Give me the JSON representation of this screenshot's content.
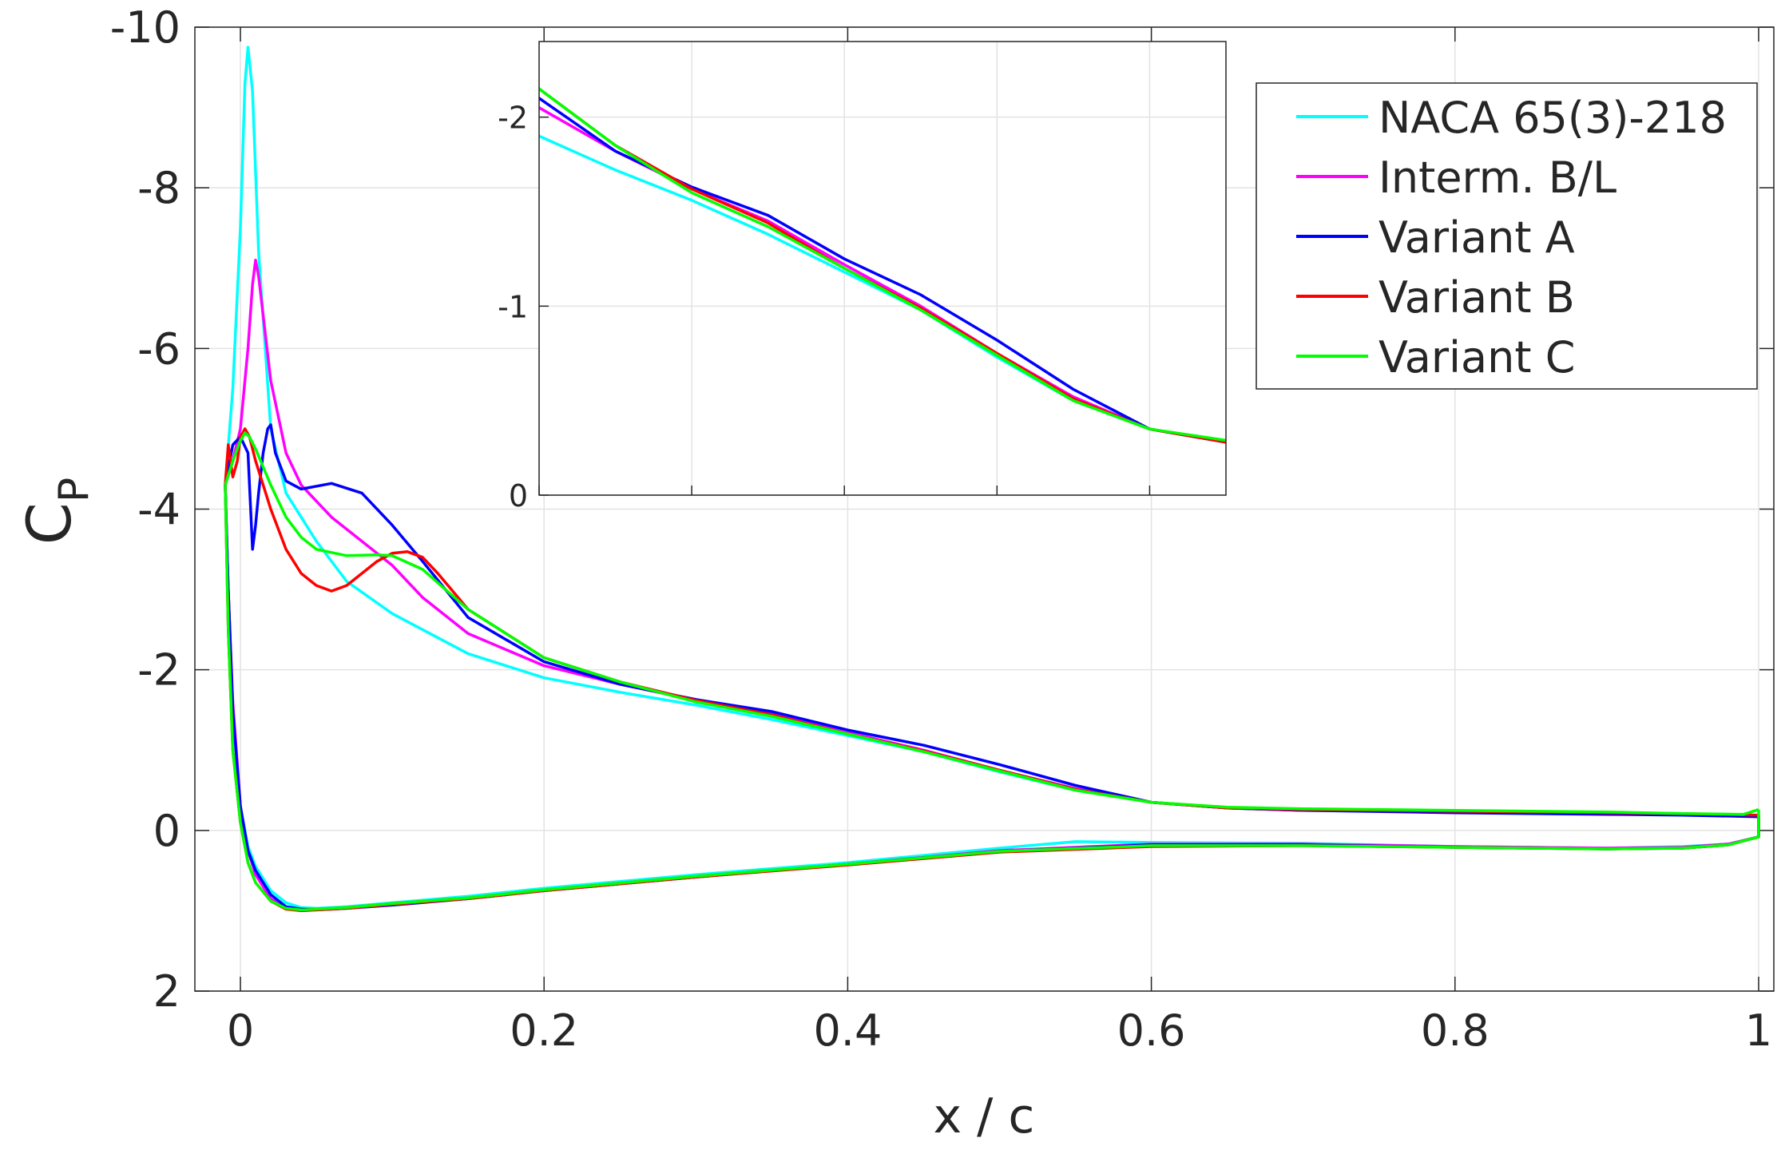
{
  "chart_data": {
    "type": "line",
    "xlabel": "x / c",
    "ylabel_main": "C",
    "ylabel_sub": "P",
    "xlim": [
      -0.03,
      1.01
    ],
    "ylim": [
      -10,
      2
    ],
    "y_reversed": true,
    "grid": true,
    "xticks": [
      0,
      0.2,
      0.4,
      0.6,
      0.8,
      1
    ],
    "xtick_labels": [
      "0",
      "0.2",
      "0.4",
      "0.6",
      "0.8",
      "1"
    ],
    "yticks": [
      -10,
      -8,
      -6,
      -4,
      -2,
      0,
      2
    ],
    "ytick_labels": [
      "-10",
      "-8",
      "-6",
      "-4",
      "-2",
      "0",
      "2"
    ],
    "legend_position": "top-right",
    "series": [
      {
        "name": "NACA 65(3)-218",
        "color": "#00ffff",
        "upper": [
          [
            -0.01,
            -4.3
          ],
          [
            -0.005,
            -5.5
          ],
          [
            0,
            -7.5
          ],
          [
            0.003,
            -9.3
          ],
          [
            0.005,
            -9.75
          ],
          [
            0.008,
            -9.2
          ],
          [
            0.012,
            -7.2
          ],
          [
            0.02,
            -5.0
          ],
          [
            0.03,
            -4.2
          ],
          [
            0.05,
            -3.6
          ],
          [
            0.07,
            -3.1
          ],
          [
            0.1,
            -2.7
          ],
          [
            0.15,
            -2.2
          ],
          [
            0.2,
            -1.9
          ],
          [
            0.25,
            -1.72
          ],
          [
            0.3,
            -1.56
          ],
          [
            0.35,
            -1.38
          ],
          [
            0.4,
            -1.18
          ],
          [
            0.45,
            -0.98
          ],
          [
            0.5,
            -0.73
          ],
          [
            0.55,
            -0.5
          ],
          [
            0.6,
            -0.35
          ],
          [
            0.65,
            -0.28
          ],
          [
            0.7,
            -0.25
          ],
          [
            0.8,
            -0.23
          ],
          [
            0.9,
            -0.21
          ],
          [
            0.95,
            -0.2
          ],
          [
            1.0,
            -0.18
          ]
        ],
        "lower": [
          [
            -0.01,
            -4.3
          ],
          [
            -0.008,
            -3.0
          ],
          [
            -0.005,
            -1.5
          ],
          [
            0,
            -0.3
          ],
          [
            0.005,
            0.2
          ],
          [
            0.01,
            0.45
          ],
          [
            0.02,
            0.75
          ],
          [
            0.03,
            0.9
          ],
          [
            0.04,
            0.96
          ],
          [
            0.05,
            0.97
          ],
          [
            0.07,
            0.95
          ],
          [
            0.1,
            0.9
          ],
          [
            0.15,
            0.82
          ],
          [
            0.2,
            0.72
          ],
          [
            0.3,
            0.55
          ],
          [
            0.4,
            0.4
          ],
          [
            0.5,
            0.22
          ],
          [
            0.55,
            0.14
          ],
          [
            0.6,
            0.15
          ],
          [
            0.7,
            0.16
          ],
          [
            0.8,
            0.2
          ],
          [
            0.9,
            0.22
          ],
          [
            0.95,
            0.2
          ],
          [
            0.98,
            0.17
          ],
          [
            1.0,
            0.08
          ],
          [
            1.0,
            -0.18
          ]
        ]
      },
      {
        "name": "Interm. B/L",
        "color": "#ff00ff",
        "upper": [
          [
            -0.01,
            -4.3
          ],
          [
            -0.005,
            -4.6
          ],
          [
            0,
            -5.0
          ],
          [
            0.005,
            -6.0
          ],
          [
            0.008,
            -6.8
          ],
          [
            0.01,
            -7.1
          ],
          [
            0.012,
            -6.9
          ],
          [
            0.02,
            -5.6
          ],
          [
            0.03,
            -4.7
          ],
          [
            0.04,
            -4.3
          ],
          [
            0.06,
            -3.9
          ],
          [
            0.08,
            -3.6
          ],
          [
            0.1,
            -3.3
          ],
          [
            0.12,
            -2.9
          ],
          [
            0.15,
            -2.45
          ],
          [
            0.2,
            -2.05
          ],
          [
            0.25,
            -1.82
          ],
          [
            0.3,
            -1.62
          ],
          [
            0.35,
            -1.45
          ],
          [
            0.4,
            -1.22
          ],
          [
            0.45,
            -1.0
          ],
          [
            0.5,
            -0.75
          ],
          [
            0.55,
            -0.52
          ],
          [
            0.6,
            -0.35
          ],
          [
            0.65,
            -0.28
          ],
          [
            0.7,
            -0.25
          ],
          [
            0.8,
            -0.23
          ],
          [
            0.9,
            -0.21
          ],
          [
            0.95,
            -0.2
          ],
          [
            1.0,
            -0.18
          ]
        ],
        "lower": [
          [
            -0.01,
            -4.3
          ],
          [
            -0.008,
            -3.0
          ],
          [
            -0.005,
            -1.6
          ],
          [
            0,
            -0.3
          ],
          [
            0.005,
            0.25
          ],
          [
            0.01,
            0.55
          ],
          [
            0.02,
            0.85
          ],
          [
            0.03,
            0.97
          ],
          [
            0.04,
            0.98
          ],
          [
            0.05,
            0.98
          ],
          [
            0.07,
            0.96
          ],
          [
            0.1,
            0.91
          ],
          [
            0.15,
            0.84
          ],
          [
            0.2,
            0.74
          ],
          [
            0.3,
            0.57
          ],
          [
            0.4,
            0.42
          ],
          [
            0.5,
            0.25
          ],
          [
            0.6,
            0.17
          ],
          [
            0.7,
            0.17
          ],
          [
            0.8,
            0.2
          ],
          [
            0.9,
            0.22
          ],
          [
            0.95,
            0.21
          ],
          [
            0.98,
            0.17
          ],
          [
            1.0,
            0.08
          ],
          [
            1.0,
            -0.18
          ]
        ]
      },
      {
        "name": "Variant A",
        "color": "#0000ff",
        "upper": [
          [
            -0.01,
            -4.3
          ],
          [
            -0.005,
            -4.8
          ],
          [
            0,
            -4.9
          ],
          [
            0.005,
            -4.7
          ],
          [
            0.008,
            -3.5
          ],
          [
            0.01,
            -3.8
          ],
          [
            0.012,
            -4.2
          ],
          [
            0.015,
            -4.7
          ],
          [
            0.018,
            -5.0
          ],
          [
            0.02,
            -5.05
          ],
          [
            0.023,
            -4.7
          ],
          [
            0.03,
            -4.35
          ],
          [
            0.04,
            -4.25
          ],
          [
            0.06,
            -4.32
          ],
          [
            0.08,
            -4.2
          ],
          [
            0.1,
            -3.8
          ],
          [
            0.12,
            -3.35
          ],
          [
            0.15,
            -2.65
          ],
          [
            0.2,
            -2.1
          ],
          [
            0.25,
            -1.82
          ],
          [
            0.3,
            -1.63
          ],
          [
            0.35,
            -1.48
          ],
          [
            0.4,
            -1.25
          ],
          [
            0.45,
            -1.06
          ],
          [
            0.5,
            -0.82
          ],
          [
            0.55,
            -0.56
          ],
          [
            0.6,
            -0.35
          ],
          [
            0.65,
            -0.28
          ],
          [
            0.7,
            -0.25
          ],
          [
            0.8,
            -0.22
          ],
          [
            0.9,
            -0.2
          ],
          [
            0.95,
            -0.19
          ],
          [
            1.0,
            -0.17
          ]
        ],
        "lower": [
          [
            -0.01,
            -4.3
          ],
          [
            -0.008,
            -3.0
          ],
          [
            -0.005,
            -1.5
          ],
          [
            0,
            -0.3
          ],
          [
            0.005,
            0.25
          ],
          [
            0.01,
            0.5
          ],
          [
            0.02,
            0.8
          ],
          [
            0.03,
            0.95
          ],
          [
            0.04,
            0.98
          ],
          [
            0.05,
            0.99
          ],
          [
            0.07,
            0.97
          ],
          [
            0.1,
            0.93
          ],
          [
            0.15,
            0.85
          ],
          [
            0.2,
            0.75
          ],
          [
            0.3,
            0.58
          ],
          [
            0.4,
            0.42
          ],
          [
            0.5,
            0.26
          ],
          [
            0.6,
            0.18
          ],
          [
            0.7,
            0.18
          ],
          [
            0.8,
            0.21
          ],
          [
            0.9,
            0.23
          ],
          [
            0.95,
            0.22
          ],
          [
            0.98,
            0.18
          ],
          [
            1.0,
            0.08
          ],
          [
            1.0,
            -0.17
          ]
        ]
      },
      {
        "name": "Variant B",
        "color": "#ff0000",
        "upper": [
          [
            -0.01,
            -4.3
          ],
          [
            -0.008,
            -4.8
          ],
          [
            -0.005,
            -4.4
          ],
          [
            -0.002,
            -4.6
          ],
          [
            0,
            -4.9
          ],
          [
            0.003,
            -5.0
          ],
          [
            0.006,
            -4.9
          ],
          [
            0.01,
            -4.6
          ],
          [
            0.02,
            -4.0
          ],
          [
            0.03,
            -3.5
          ],
          [
            0.04,
            -3.2
          ],
          [
            0.05,
            -3.05
          ],
          [
            0.06,
            -2.98
          ],
          [
            0.07,
            -3.05
          ],
          [
            0.08,
            -3.2
          ],
          [
            0.09,
            -3.35
          ],
          [
            0.1,
            -3.45
          ],
          [
            0.11,
            -3.47
          ],
          [
            0.12,
            -3.4
          ],
          [
            0.13,
            -3.2
          ],
          [
            0.15,
            -2.75
          ],
          [
            0.2,
            -2.15
          ],
          [
            0.25,
            -1.85
          ],
          [
            0.3,
            -1.62
          ],
          [
            0.35,
            -1.44
          ],
          [
            0.4,
            -1.2
          ],
          [
            0.45,
            -0.99
          ],
          [
            0.5,
            -0.75
          ],
          [
            0.55,
            -0.51
          ],
          [
            0.6,
            -0.35
          ],
          [
            0.65,
            -0.28
          ],
          [
            0.7,
            -0.26
          ],
          [
            0.8,
            -0.24
          ],
          [
            0.9,
            -0.22
          ],
          [
            0.95,
            -0.21
          ],
          [
            1.0,
            -0.19
          ]
        ],
        "lower": [
          [
            -0.01,
            -4.3
          ],
          [
            -0.008,
            -2.5
          ],
          [
            -0.005,
            -1.0
          ],
          [
            0,
            -0.1
          ],
          [
            0.005,
            0.4
          ],
          [
            0.01,
            0.65
          ],
          [
            0.02,
            0.88
          ],
          [
            0.03,
            0.98
          ],
          [
            0.04,
            1.0
          ],
          [
            0.05,
            0.99
          ],
          [
            0.07,
            0.97
          ],
          [
            0.1,
            0.92
          ],
          [
            0.15,
            0.85
          ],
          [
            0.2,
            0.75
          ],
          [
            0.3,
            0.58
          ],
          [
            0.4,
            0.43
          ],
          [
            0.5,
            0.27
          ],
          [
            0.6,
            0.2
          ],
          [
            0.7,
            0.19
          ],
          [
            0.8,
            0.21
          ],
          [
            0.9,
            0.23
          ],
          [
            0.95,
            0.22
          ],
          [
            0.98,
            0.18
          ],
          [
            1.0,
            0.08
          ],
          [
            1.0,
            -0.19
          ]
        ]
      },
      {
        "name": "Variant C",
        "color": "#00ff00",
        "upper": [
          [
            -0.01,
            -4.3
          ],
          [
            -0.005,
            -4.6
          ],
          [
            0,
            -4.85
          ],
          [
            0.003,
            -4.95
          ],
          [
            0.006,
            -4.9
          ],
          [
            0.01,
            -4.75
          ],
          [
            0.02,
            -4.3
          ],
          [
            0.03,
            -3.9
          ],
          [
            0.04,
            -3.65
          ],
          [
            0.05,
            -3.5
          ],
          [
            0.07,
            -3.42
          ],
          [
            0.09,
            -3.43
          ],
          [
            0.1,
            -3.42
          ],
          [
            0.12,
            -3.25
          ],
          [
            0.15,
            -2.75
          ],
          [
            0.2,
            -2.15
          ],
          [
            0.25,
            -1.85
          ],
          [
            0.3,
            -1.6
          ],
          [
            0.35,
            -1.42
          ],
          [
            0.4,
            -1.2
          ],
          [
            0.45,
            -0.98
          ],
          [
            0.5,
            -0.74
          ],
          [
            0.55,
            -0.5
          ],
          [
            0.6,
            -0.35
          ],
          [
            0.65,
            -0.29
          ],
          [
            0.7,
            -0.27
          ],
          [
            0.8,
            -0.25
          ],
          [
            0.9,
            -0.23
          ],
          [
            0.95,
            -0.21
          ],
          [
            0.99,
            -0.2
          ],
          [
            1.0,
            -0.26
          ]
        ],
        "lower": [
          [
            -0.01,
            -4.3
          ],
          [
            -0.008,
            -2.5
          ],
          [
            -0.005,
            -1.0
          ],
          [
            0,
            -0.1
          ],
          [
            0.005,
            0.4
          ],
          [
            0.01,
            0.65
          ],
          [
            0.02,
            0.88
          ],
          [
            0.03,
            0.97
          ],
          [
            0.04,
            0.99
          ],
          [
            0.05,
            0.98
          ],
          [
            0.07,
            0.96
          ],
          [
            0.1,
            0.91
          ],
          [
            0.15,
            0.84
          ],
          [
            0.2,
            0.74
          ],
          [
            0.3,
            0.57
          ],
          [
            0.4,
            0.42
          ],
          [
            0.5,
            0.26
          ],
          [
            0.6,
            0.19
          ],
          [
            0.7,
            0.19
          ],
          [
            0.8,
            0.21
          ],
          [
            0.9,
            0.23
          ],
          [
            0.95,
            0.22
          ],
          [
            0.98,
            0.18
          ],
          [
            1.0,
            0.08
          ],
          [
            1.0,
            -0.26
          ]
        ]
      }
    ],
    "inset": {
      "xlim": [
        0.2,
        0.65
      ],
      "ylim": [
        -2.4,
        0
      ],
      "y_reversed": true,
      "grid": true,
      "xticks": [
        0.2,
        0.3,
        0.4,
        0.5,
        0.6
      ],
      "yticks": [
        -2,
        -1,
        0
      ],
      "ytick_labels": [
        "-2",
        "-1",
        "0"
      ]
    }
  }
}
